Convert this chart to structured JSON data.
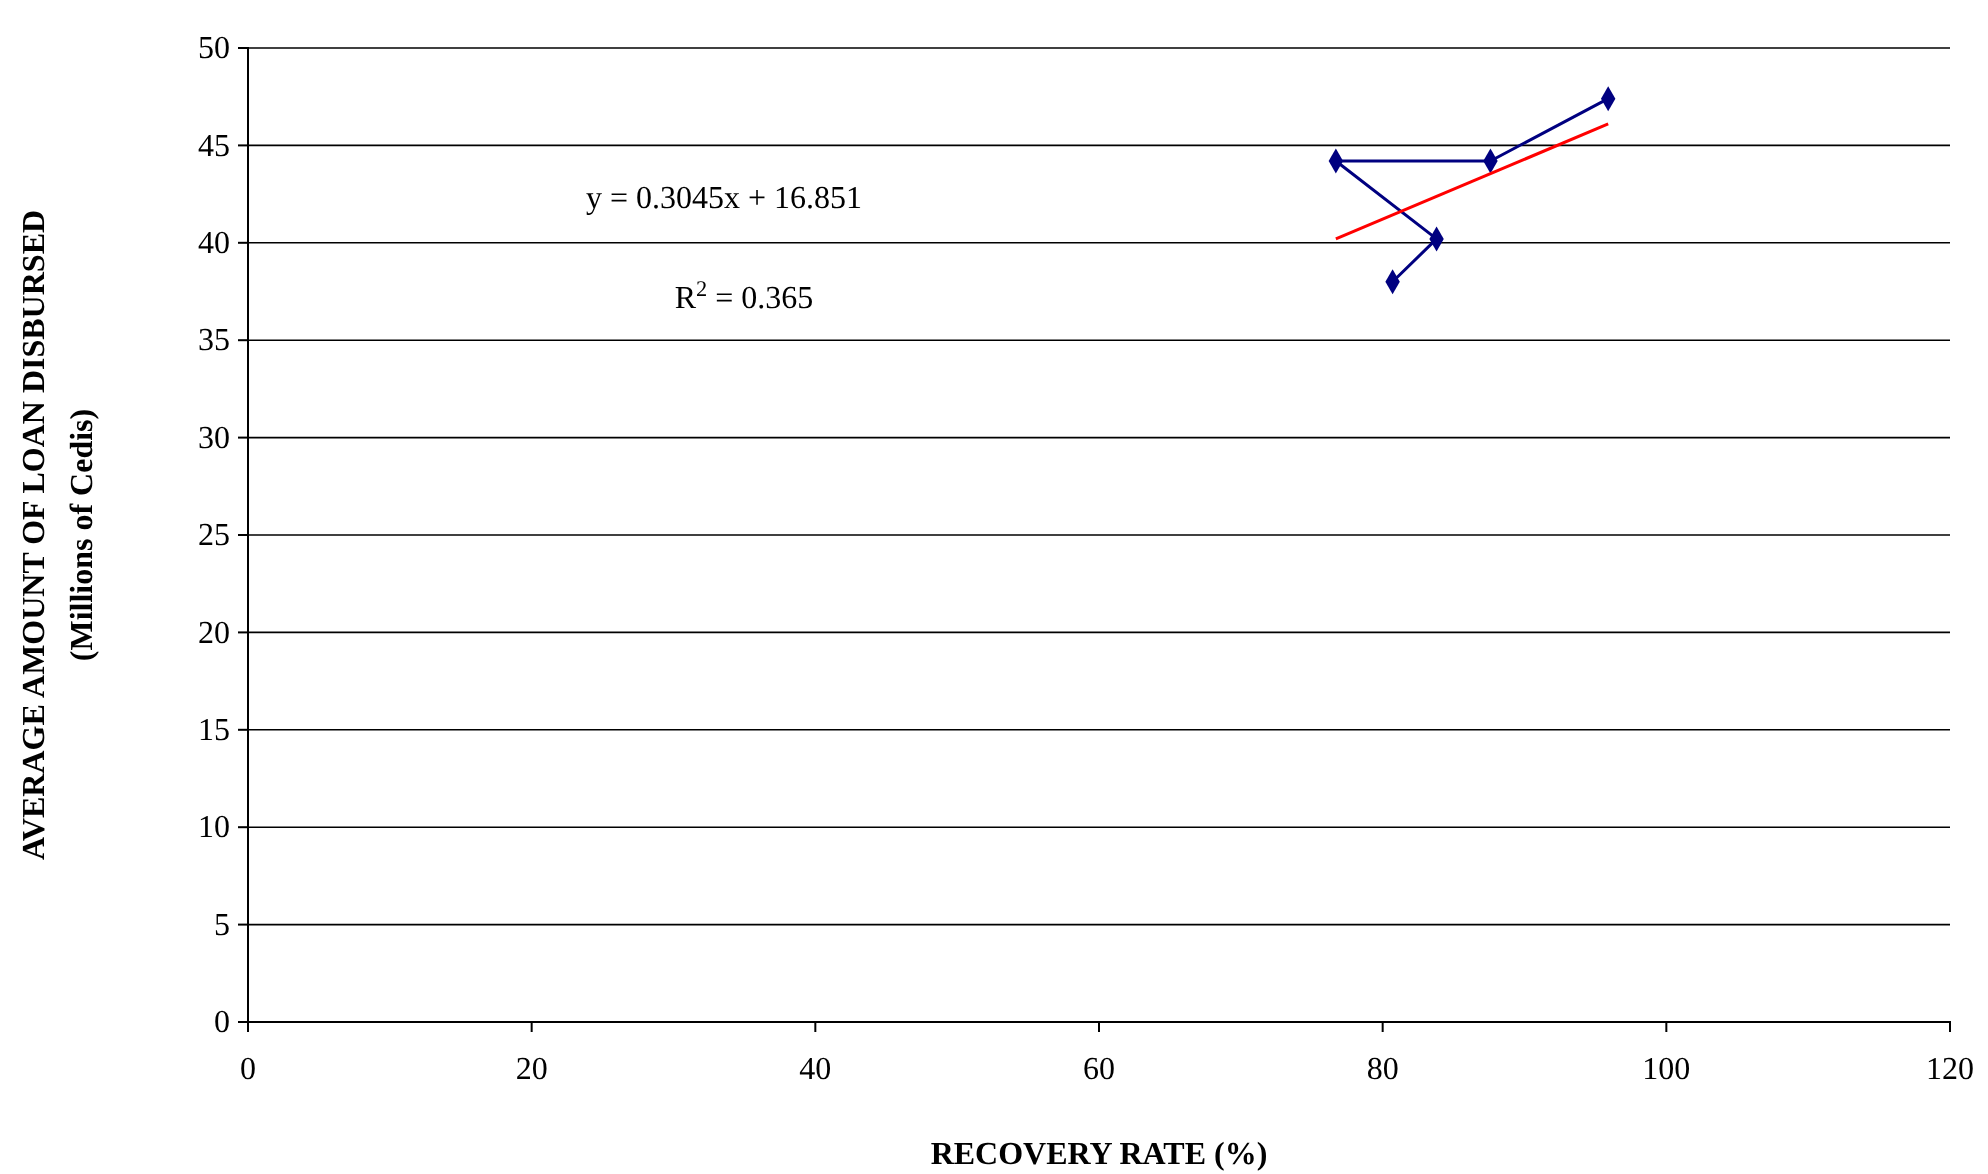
{
  "chart_data": {
    "type": "scatter",
    "xlabel": "RECOVERY RATE (%)",
    "ylabel": "AVERAGE AMOUNT OF LOAN DISBURSED\n(Millions of Cedis)",
    "xlim": [
      0,
      120
    ],
    "xticks": [
      0,
      20,
      40,
      60,
      80,
      100,
      120
    ],
    "ylim": [
      0,
      50
    ],
    "yticks": [
      0,
      5,
      10,
      15,
      20,
      25,
      30,
      35,
      40,
      45,
      50
    ],
    "grid": "y",
    "series": [
      {
        "type": "line",
        "marker": "diamond",
        "color": "#000080",
        "x": [
          80.7,
          83.8,
          76.7,
          87.6,
          95.9
        ],
        "values": [
          38.0,
          40.2,
          44.2,
          44.2,
          47.4
        ]
      },
      {
        "type": "line",
        "marker": "none",
        "color": "#ff0000",
        "x": [
          76.7,
          95.9
        ],
        "values": [
          40.2,
          46.1
        ]
      }
    ],
    "annotations": [
      "y = 0.3045x + 16.851",
      "R$^{2}$ = 0.365"
    ]
  }
}
